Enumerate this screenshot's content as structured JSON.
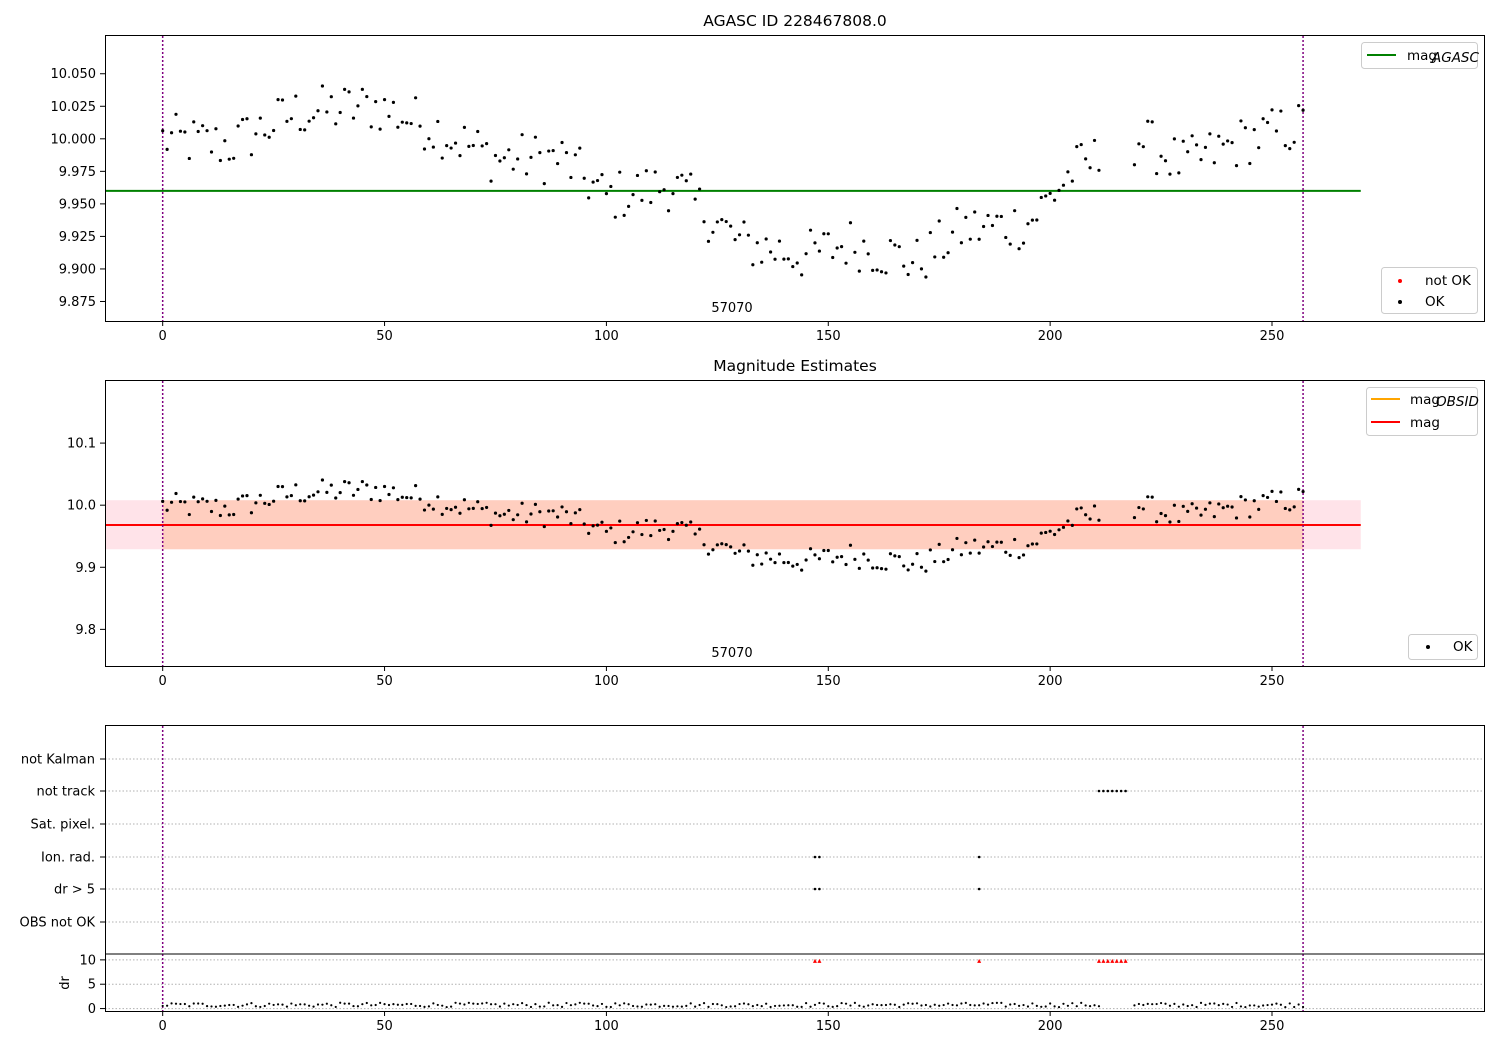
{
  "chart_data": [
    {
      "type": "scatter",
      "title": "AGASC ID 228467808.0",
      "annotation": "57070",
      "xlim": [
        -13,
        298
      ],
      "ylim": [
        9.86,
        10.079
      ],
      "xticks": [
        0,
        50,
        100,
        150,
        200,
        250
      ],
      "yticks": [
        9.875,
        9.9,
        9.925,
        9.95,
        9.975,
        10.0,
        10.025,
        10.05
      ],
      "ytick_labels": [
        "9.875",
        "9.900",
        "9.925",
        "9.950",
        "9.975",
        "10.000",
        "10.025",
        "10.050"
      ],
      "vlines": [
        0,
        257
      ],
      "hline": {
        "label": "mag",
        "label_sub": "AGASC",
        "value": 9.96,
        "x_range": [
          -13,
          270
        ],
        "color": "#008000"
      },
      "legend_lines": [
        {
          "label": "mag",
          "sub": "AGASC",
          "color": "#008000"
        }
      ],
      "legend_points": [
        {
          "label": "not OK",
          "color": "#ff0000"
        },
        {
          "label": "OK",
          "color": "#000000"
        }
      ],
      "grid": false
    },
    {
      "type": "scatter",
      "title": "Magnitude Estimates",
      "annotation": "57070",
      "xlim": [
        -13,
        298
      ],
      "ylim": [
        9.741,
        10.2
      ],
      "xticks": [
        0,
        50,
        100,
        150,
        200,
        250
      ],
      "yticks": [
        9.8,
        9.9,
        10.0,
        10.1
      ],
      "ytick_labels": [
        "9.8",
        "9.9",
        "10.0",
        "10.1"
      ],
      "vlines": [
        0,
        257
      ],
      "mag_line": {
        "value": 9.968,
        "x_range": [
          -13,
          270
        ],
        "color": "#ff0000"
      },
      "mag_band": {
        "low": 9.929,
        "high": 10.008,
        "color": "#ffb0c0"
      },
      "obsid_band": {
        "low": 9.929,
        "high": 10.008,
        "x_range": [
          0,
          257
        ],
        "color": "#ffa060"
      },
      "legend_lines": [
        {
          "label": "mag",
          "sub": "OBSID",
          "color": "#ffa500"
        },
        {
          "label": "mag",
          "sub": "",
          "color": "#ff0000"
        }
      ],
      "legend_points": [
        {
          "label": "OK",
          "color": "#000000"
        }
      ],
      "grid": false
    },
    {
      "type": "scatter",
      "title": "",
      "xlim": [
        -13,
        298
      ],
      "flag_rows": [
        "not Kalman",
        "not track",
        "Sat. pixel.",
        "Ion. rad.",
        "dr > 5",
        "OBS not OK"
      ],
      "flags": {
        "not track": [
          211,
          212,
          213,
          214,
          215,
          216,
          217
        ],
        "Ion. rad.": [
          147,
          148,
          184
        ],
        "dr > 5": [
          147,
          148,
          184
        ]
      },
      "dr_ylim": [
        -0.5,
        11
      ],
      "dr_yticks": [
        0,
        5,
        10
      ],
      "dr_ylabel": "dr",
      "dr_outliers": [
        147,
        148,
        184,
        211,
        212,
        213,
        214,
        215,
        216,
        217
      ],
      "xticks": [
        0,
        50,
        100,
        150,
        200,
        250
      ],
      "vlines": [
        0,
        257
      ],
      "grid": true
    }
  ]
}
